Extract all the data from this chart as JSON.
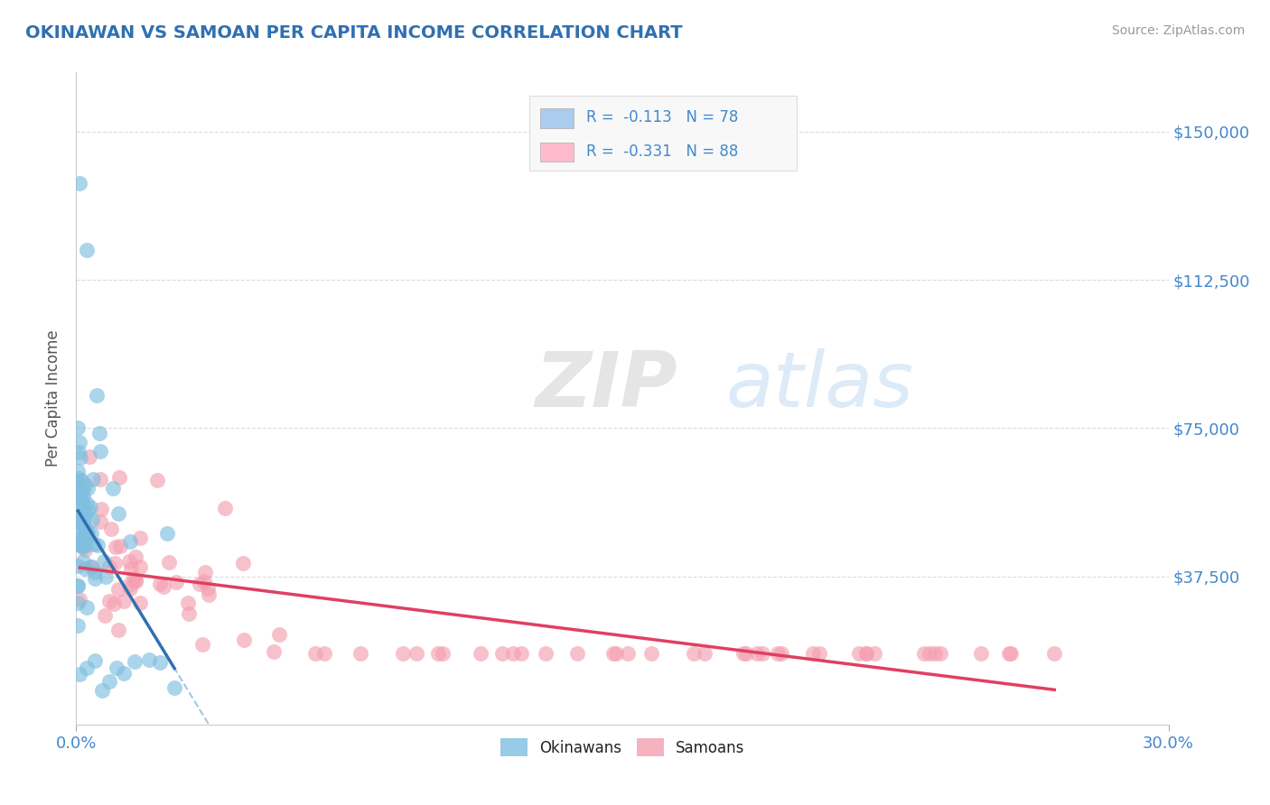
{
  "title": "OKINAWAN VS SAMOAN PER CAPITA INCOME CORRELATION CHART",
  "source_text": "Source: ZipAtlas.com",
  "ylabel": "Per Capita Income",
  "xlim": [
    0.0,
    0.3
  ],
  "ylim": [
    0,
    165000
  ],
  "yticks": [
    0,
    37500,
    75000,
    112500,
    150000
  ],
  "ytick_labels": [
    "",
    "$37,500",
    "$75,000",
    "$112,500",
    "$150,000"
  ],
  "xticks": [
    0.0,
    0.3
  ],
  "xtick_labels": [
    "0.0%",
    "30.0%"
  ],
  "okinawan_color": "#7fbfdf",
  "samoan_color": "#f4a0b0",
  "okinawan_line_color": "#3070b0",
  "samoan_line_color": "#e04060",
  "dashed_line_color": "#88bbdd",
  "title_color": "#3070b0",
  "axis_label_color": "#555555",
  "tick_label_color": "#4488cc",
  "source_color": "#999999",
  "legend_label1": "R =  -0.113   N = 78",
  "legend_label2": "R =  -0.331   N = 88",
  "legend_color1": "#aaccee",
  "legend_color2": "#ffbbcc",
  "watermark_zip": "ZIP",
  "watermark_atlas": "atlas",
  "background_color": "#ffffff",
  "grid_color": "#cccccc",
  "ok_intercept": 65000,
  "ok_slope": -1800000,
  "sa_intercept": 46000,
  "sa_slope": -430000,
  "ok_dash_intercept": 65000,
  "ok_dash_slope": -1800000
}
